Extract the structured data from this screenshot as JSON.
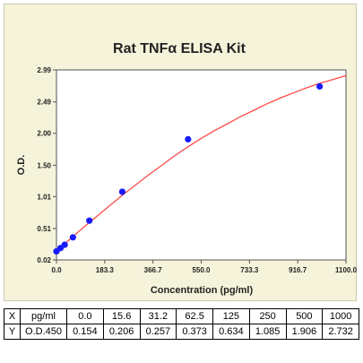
{
  "chart_data": {
    "type": "scatter",
    "title": "Rat TNFα ELISA Kit",
    "xlabel": "Concentration (pg/ml)",
    "ylabel": "O.D.",
    "xlim": [
      0,
      1100
    ],
    "ylim": [
      0.02,
      2.99
    ],
    "x_ticks": [
      0,
      183.3,
      366.7,
      550,
      733.3,
      916.7,
      1100
    ],
    "x_tick_labels": [
      "0.0",
      "183.3",
      "366.7",
      "550.0",
      "733.3",
      "916.7",
      "1100.0"
    ],
    "y_ticks": [
      0.02,
      0.51,
      1.01,
      1.5,
      2.0,
      2.49,
      2.99
    ],
    "y_tick_labels": [
      "0.02",
      "0.51",
      "1.01",
      "1.50",
      "2.00",
      "2.49",
      "2.99"
    ],
    "grid": false,
    "series": [
      {
        "points": [
          [
            0,
            0.154
          ],
          [
            15.6,
            0.206
          ],
          [
            31.2,
            0.257
          ],
          [
            62.5,
            0.373
          ],
          [
            125,
            0.634
          ],
          [
            250,
            1.085
          ],
          [
            500,
            1.906
          ],
          [
            1000,
            2.732
          ]
        ],
        "color": "#1a1aff"
      }
    ],
    "fit_curve": {
      "color": "#ff4a4a",
      "points": [
        [
          0,
          0.16
        ],
        [
          50,
          0.34
        ],
        [
          100,
          0.52
        ],
        [
          150,
          0.69
        ],
        [
          200,
          0.86
        ],
        [
          250,
          1.03
        ],
        [
          300,
          1.19
        ],
        [
          350,
          1.35
        ],
        [
          400,
          1.5
        ],
        [
          450,
          1.65
        ],
        [
          500,
          1.79
        ],
        [
          550,
          1.92
        ],
        [
          600,
          2.04
        ],
        [
          650,
          2.15
        ],
        [
          700,
          2.26
        ],
        [
          750,
          2.36
        ],
        [
          800,
          2.46
        ],
        [
          850,
          2.55
        ],
        [
          900,
          2.63
        ],
        [
          950,
          2.71
        ],
        [
          1000,
          2.78
        ],
        [
          1050,
          2.84
        ],
        [
          1100,
          2.9
        ]
      ]
    }
  },
  "table": {
    "rows": [
      [
        "X",
        "pg/ml",
        "0.0",
        "15.6",
        "31.2",
        "62.5",
        "125",
        "250",
        "500",
        "1000"
      ],
      [
        "Y",
        "O.D.450",
        "0.154",
        "0.206",
        "0.257",
        "0.373",
        "0.634",
        "1.085",
        "1.906",
        "2.732"
      ]
    ]
  }
}
